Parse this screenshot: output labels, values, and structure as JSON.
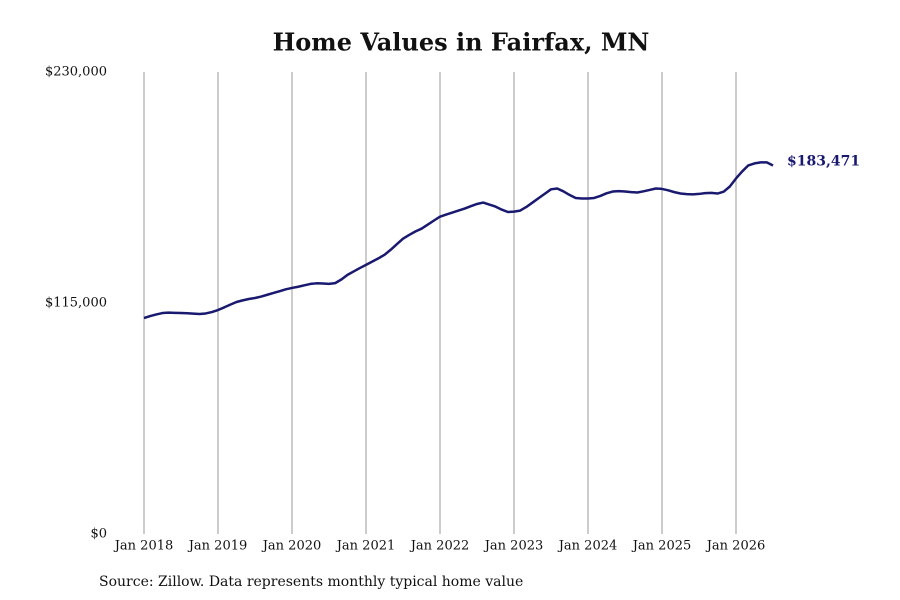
{
  "chart_data": {
    "type": "line",
    "title": "Home Values in Fairfax, MN",
    "note": "Source: Zillow. Data represents monthly typical home value",
    "x": [
      "2018-01",
      "2018-02",
      "2018-03",
      "2018-04",
      "2018-05",
      "2018-06",
      "2018-07",
      "2018-08",
      "2018-09",
      "2018-10",
      "2018-11",
      "2018-12",
      "2019-01",
      "2019-02",
      "2019-03",
      "2019-04",
      "2019-05",
      "2019-06",
      "2019-07",
      "2019-08",
      "2019-09",
      "2019-10",
      "2019-11",
      "2019-12",
      "2020-01",
      "2020-02",
      "2020-03",
      "2020-04",
      "2020-05",
      "2020-06",
      "2020-07",
      "2020-08",
      "2020-09",
      "2020-10",
      "2020-11",
      "2020-12",
      "2021-01",
      "2021-02",
      "2021-03",
      "2021-04",
      "2021-05",
      "2021-06",
      "2021-07",
      "2021-08",
      "2021-09",
      "2021-10",
      "2021-11",
      "2021-12",
      "2022-01",
      "2022-02",
      "2022-03",
      "2022-04",
      "2022-05",
      "2022-06",
      "2022-07",
      "2022-08",
      "2022-09",
      "2022-10",
      "2022-11",
      "2022-12",
      "2023-01",
      "2023-02",
      "2023-03",
      "2023-04",
      "2023-05",
      "2023-06",
      "2023-07",
      "2023-08",
      "2023-09",
      "2023-10",
      "2023-11",
      "2023-12",
      "2024-01",
      "2024-02",
      "2024-03",
      "2024-04",
      "2024-05",
      "2024-06",
      "2024-07",
      "2024-08",
      "2024-09",
      "2024-10",
      "2024-11",
      "2024-12",
      "2025-01",
      "2025-02",
      "2025-03",
      "2025-04",
      "2025-05",
      "2025-06",
      "2025-07",
      "2025-08",
      "2025-09",
      "2025-10",
      "2025-11",
      "2025-12",
      "2026-01",
      "2026-02",
      "2026-03",
      "2026-04",
      "2026-05",
      "2026-06",
      "2026-07"
    ],
    "series": [
      {
        "name": "Home value",
        "color": "#191970",
        "values": [
          107500,
          108500,
          109300,
          110000,
          110200,
          110100,
          110000,
          109900,
          109700,
          109500,
          109800,
          110500,
          111500,
          112800,
          114200,
          115500,
          116300,
          117000,
          117500,
          118200,
          119100,
          120000,
          120900,
          121800,
          122500,
          123100,
          123800,
          124500,
          124800,
          124700,
          124500,
          124900,
          126700,
          129000,
          130700,
          132400,
          134000,
          135600,
          137200,
          139000,
          141500,
          144300,
          147000,
          148900,
          150600,
          152000,
          154000,
          156000,
          158000,
          159000,
          160000,
          161000,
          162000,
          163200,
          164300,
          165000,
          164000,
          163000,
          161500,
          160300,
          160500,
          161000,
          162800,
          165000,
          167200,
          169400,
          171600,
          172000,
          170600,
          168800,
          167300,
          167000,
          167000,
          167300,
          168300,
          169600,
          170500,
          170700,
          170500,
          170200,
          170000,
          170600,
          171300,
          172000,
          171800,
          171100,
          170200,
          169500,
          169200,
          169100,
          169300,
          169700,
          169800,
          169500,
          170400,
          173000,
          177000,
          180500,
          183500,
          184500,
          185000,
          185000,
          183471
        ],
        "value_labels": [
          null,
          null,
          null,
          null,
          null,
          null,
          null,
          null,
          null,
          null,
          null,
          null,
          null,
          null,
          null,
          null,
          null,
          null,
          null,
          null,
          null,
          null,
          null,
          null,
          null,
          null,
          null,
          null,
          null,
          null,
          null,
          null,
          null,
          null,
          null,
          null,
          null,
          null,
          null,
          null,
          null,
          null,
          null,
          null,
          null,
          null,
          null,
          null,
          null,
          null,
          null,
          null,
          null,
          null,
          null,
          null,
          null,
          null,
          null,
          null,
          null,
          null,
          null,
          null,
          null,
          null,
          null,
          null,
          null,
          null,
          null,
          null,
          null,
          null,
          null,
          null,
          null,
          null,
          null,
          null,
          null,
          null,
          null,
          null,
          null,
          null,
          null,
          null,
          null,
          null,
          null,
          null,
          null,
          null,
          null,
          null,
          null,
          null,
          null,
          null,
          null,
          null,
          "$183,471"
        ]
      }
    ],
    "xlim": [
      "2017-07",
      "2027-01"
    ],
    "xticks": [
      {
        "value": "2018-01",
        "label": "Jan 2018"
      },
      {
        "value": "2019-01",
        "label": "Jan 2019"
      },
      {
        "value": "2020-01",
        "label": "Jan 2020"
      },
      {
        "value": "2021-01",
        "label": "Jan 2021"
      },
      {
        "value": "2022-01",
        "label": "Jan 2022"
      },
      {
        "value": "2023-01",
        "label": "Jan 2023"
      },
      {
        "value": "2024-01",
        "label": "Jan 2024"
      },
      {
        "value": "2025-01",
        "label": "Jan 2025"
      },
      {
        "value": "2026-01",
        "label": "Jan 2026"
      }
    ],
    "ylim": [
      0,
      230000
    ],
    "yticks": [
      {
        "value": 0,
        "label": "$0"
      },
      {
        "value": 115000,
        "label": "$115,000"
      },
      {
        "value": 230000,
        "label": "$230,000"
      }
    ],
    "grid": "x"
  }
}
